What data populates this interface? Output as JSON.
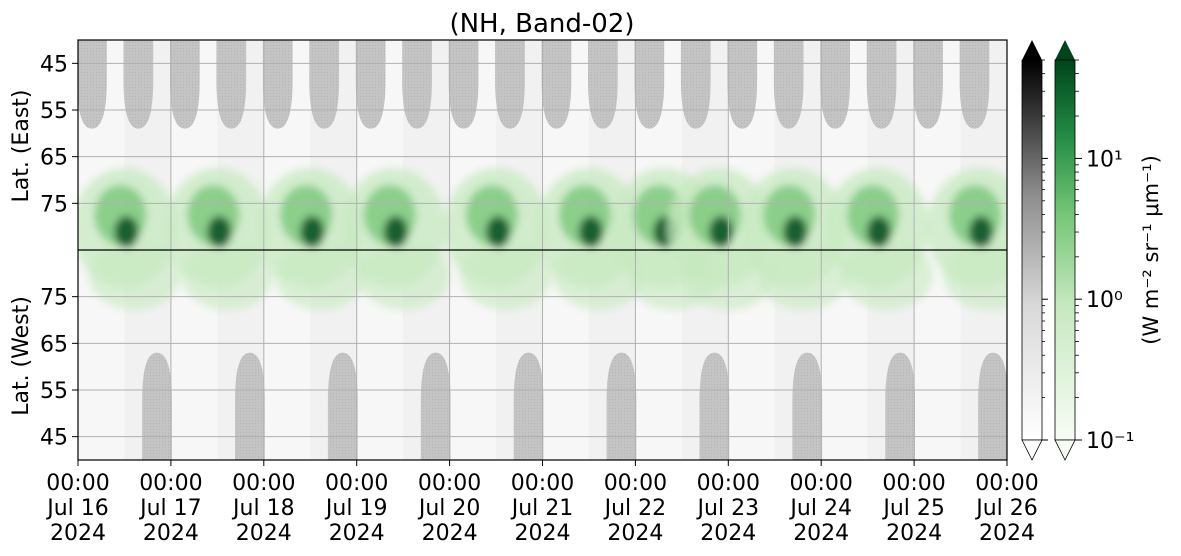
{
  "chart_data": {
    "type": "heatmap",
    "title": "(NH, Band-02)",
    "x_ticks": [
      {
        "time": "00:00",
        "day": "Jul 16",
        "year": "2024"
      },
      {
        "time": "00:00",
        "day": "Jul 17",
        "year": "2024"
      },
      {
        "time": "00:00",
        "day": "Jul 18",
        "year": "2024"
      },
      {
        "time": "00:00",
        "day": "Jul 19",
        "year": "2024"
      },
      {
        "time": "00:00",
        "day": "Jul 20",
        "year": "2024"
      },
      {
        "time": "00:00",
        "day": "Jul 21",
        "year": "2024"
      },
      {
        "time": "00:00",
        "day": "Jul 22",
        "year": "2024"
      },
      {
        "time": "00:00",
        "day": "Jul 23",
        "year": "2024"
      },
      {
        "time": "00:00",
        "day": "Jul 24",
        "year": "2024"
      },
      {
        "time": "00:00",
        "day": "Jul 25",
        "year": "2024"
      },
      {
        "time": "00:00",
        "day": "Jul 26",
        "year": "2024"
      }
    ],
    "xlim": [
      "2024-07-16T00:00",
      "2024-07-26T00:00"
    ],
    "y_panels": [
      {
        "label": "Lat. (East)",
        "ticks": [
          45,
          55,
          65,
          75
        ],
        "range": [
          85,
          40
        ],
        "direction": "descending-up"
      },
      {
        "label": "Lat. (West)",
        "ticks": [
          75,
          65,
          55,
          45
        ],
        "range": [
          85,
          40
        ],
        "direction": "descending-down"
      }
    ],
    "grid": true,
    "colorbar": {
      "label": "(W m⁻² sr⁻¹ μm⁻¹)",
      "scale": "log",
      "range": [
        0.1,
        50
      ],
      "ticks": [
        {
          "value": 10,
          "label": "10¹"
        },
        {
          "value": 1,
          "label": "10⁰"
        },
        {
          "value": 0.1,
          "label": "10⁻¹"
        }
      ],
      "colormaps": [
        "Greys",
        "Greens"
      ],
      "extend": "both"
    },
    "colors": {
      "green_dark": "#00441b",
      "green_mid": "#41ab5d",
      "green_light": "#c7e9c0",
      "night_grey": "#c0c0c0",
      "grid": "#b0b0b0"
    },
    "description_features": {
      "east_night_lobes_day_fraction": [
        0.15,
        0.65,
        1.15,
        1.65,
        2.15,
        2.65,
        3.15,
        3.65,
        4.15,
        4.65,
        5.15,
        5.65,
        6.15,
        6.65,
        7.15,
        7.65,
        8.15,
        8.65,
        9.15,
        9.65
      ],
      "west_night_lobes_day_fraction": [
        0.85,
        1.85,
        2.85,
        3.85,
        4.85,
        5.85,
        6.85,
        7.85,
        8.85,
        9.85
      ],
      "emission_peaks_day_fraction": [
        0.5,
        1.5,
        2.5,
        3.4,
        4.5,
        5.5,
        6.3,
        6.9,
        7.7,
        8.6,
        9.7
      ]
    }
  }
}
